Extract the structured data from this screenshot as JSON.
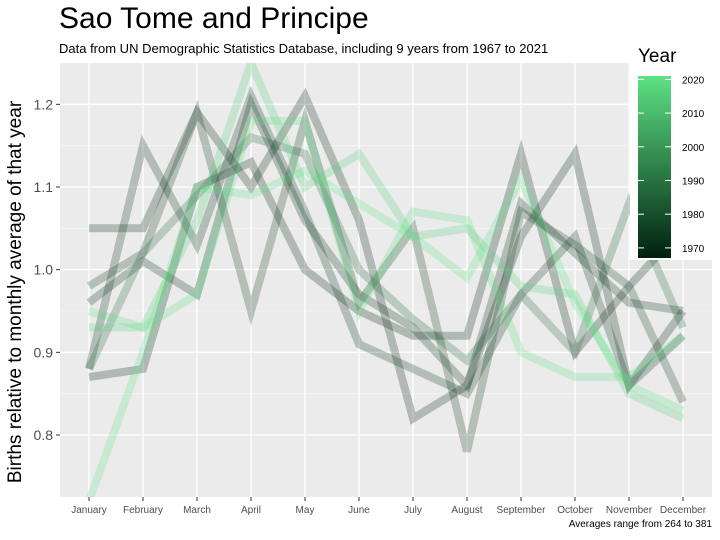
{
  "title": "Sao Tome and Principe",
  "subtitle": "Data from UN Demographic Statistics Database, including 9 years from 1967 to 2021",
  "caption": "Averages range from 264 to 381",
  "chart_data": {
    "type": "line",
    "ylabel": "Births relative to monthly average of that year",
    "xlabel": "",
    "categories": [
      "January",
      "February",
      "March",
      "April",
      "May",
      "June",
      "July",
      "August",
      "September",
      "October",
      "November",
      "December"
    ],
    "ylim": [
      0.725,
      1.25
    ],
    "yticks": [
      0.8,
      0.9,
      1.0,
      1.1,
      1.2
    ],
    "ytick_labels": [
      "0.8",
      "0.9",
      "1.0",
      "1.1",
      "1.2"
    ],
    "grid": true,
    "legend": {
      "title": "Year",
      "position": "right",
      "type": "colorbar",
      "range": [
        1967,
        2021
      ],
      "ticks": [
        1970,
        1980,
        1990,
        2000,
        2010,
        2020
      ],
      "tick_labels": [
        "1970",
        "1980",
        "1990",
        "2000",
        "2010",
        "2020"
      ],
      "color_low": "#00200f",
      "color_high": "#5de283"
    },
    "series": [
      {
        "year": 1967,
        "values": [
          0.87,
          0.88,
          1.1,
          1.13,
          1.0,
          0.95,
          0.92,
          0.92,
          1.14,
          0.9,
          0.98,
          1.05
        ]
      },
      {
        "year": 1968,
        "values": [
          1.05,
          1.05,
          1.19,
          1.1,
          1.21,
          1.06,
          0.82,
          0.86,
          1.04,
          1.14,
          0.86,
          0.95
        ]
      },
      {
        "year": 1971,
        "values": [
          0.96,
          1.01,
          0.97,
          1.2,
          1.06,
          0.97,
          0.93,
          0.86,
          1.08,
          1.02,
          0.96,
          0.95
        ]
      },
      {
        "year": 1972,
        "values": [
          0.88,
          1.15,
          1.03,
          1.21,
          1.07,
          0.91,
          0.88,
          0.85,
          0.97,
          1.04,
          0.86,
          0.92
        ]
      },
      {
        "year": 1975,
        "values": [
          0.98,
          1.02,
          1.19,
          0.95,
          1.18,
          0.96,
          1.05,
          0.78,
          1.07,
          1.03,
          0.98,
          0.84
        ]
      },
      {
        "year": 1986,
        "values": [
          0.88,
          1.02,
          1.09,
          1.16,
          1.14,
          1.0,
          0.94,
          0.89,
          0.97,
          0.9,
          1.08,
          0.93
        ]
      },
      {
        "year": 2016,
        "values": [
          0.93,
          0.93,
          1.06,
          1.25,
          1.1,
          1.14,
          1.04,
          1.05,
          0.98,
          0.97,
          0.85,
          0.82
        ]
      },
      {
        "year": 2019,
        "values": [
          0.95,
          0.93,
          0.97,
          1.18,
          1.18,
          0.95,
          1.07,
          1.06,
          0.9,
          0.87,
          0.87,
          0.92
        ]
      },
      {
        "year": 2021,
        "values": [
          0.72,
          0.9,
          1.1,
          1.09,
          1.12,
          1.08,
          1.04,
          0.99,
          1.11,
          0.96,
          0.86,
          0.83
        ]
      }
    ]
  }
}
